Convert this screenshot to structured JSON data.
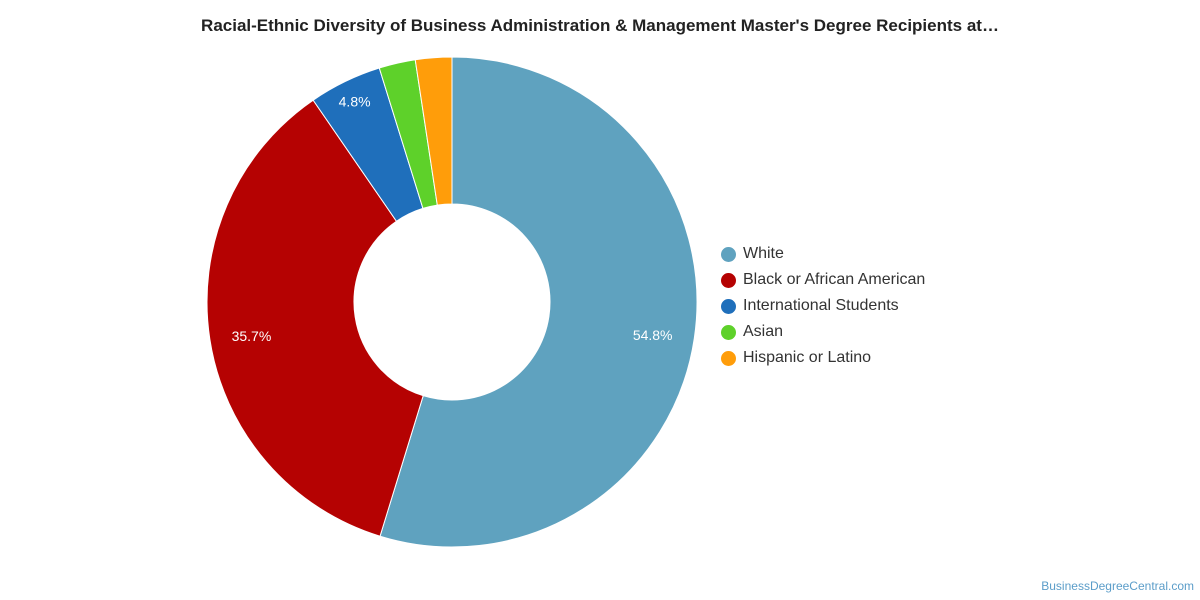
{
  "chart_data": {
    "type": "pie",
    "title": "Racial-Ethnic Diversity of Business Administration & Management Master's Degree Recipients at…",
    "categories": [
      "White",
      "Black or African American",
      "International Students",
      "Asian",
      "Hispanic or Latino"
    ],
    "values": [
      54.8,
      35.7,
      4.8,
      2.4,
      2.4
    ],
    "data_labels": [
      "54.8%",
      "35.7%",
      "4.8%",
      "",
      ""
    ],
    "colors": [
      "#5fa2bf",
      "#b50202",
      "#1f6fbb",
      "#5ed12a",
      "#ff9d0a"
    ],
    "donut": true,
    "legend_position": "right"
  },
  "footer": {
    "credit": "BusinessDegreeCentral.com"
  }
}
